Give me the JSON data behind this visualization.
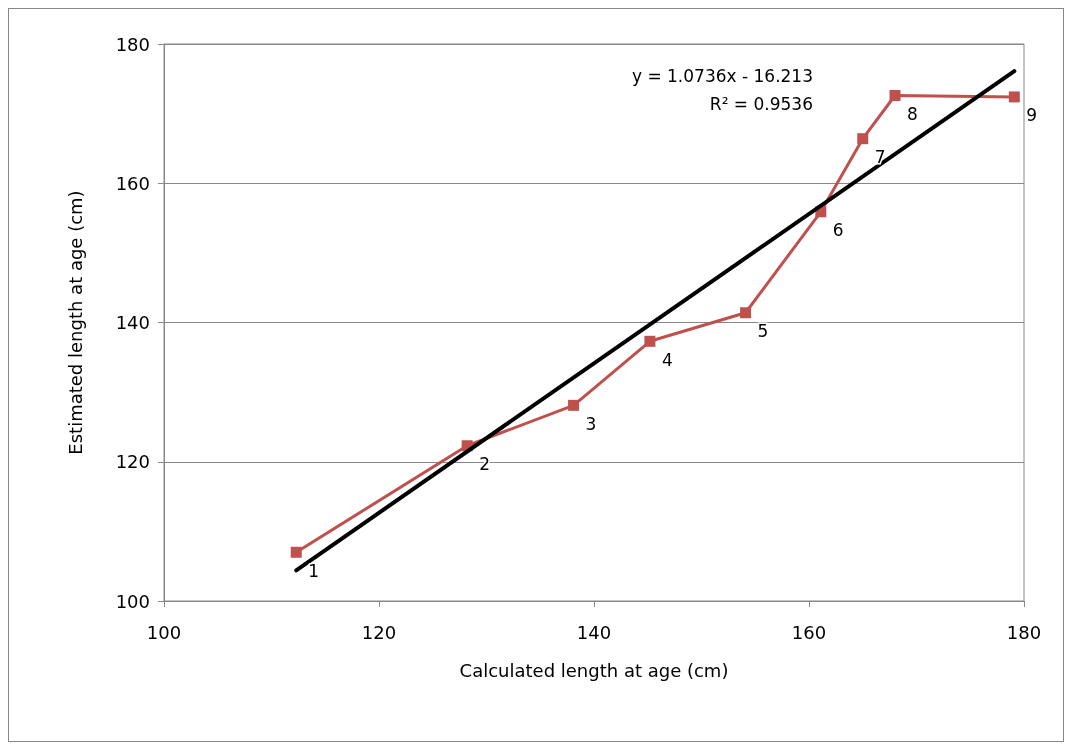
{
  "chart_data": {
    "type": "line",
    "xlabel": "Calculated length at age (cm)",
    "ylabel": "Estimated length at age (cm)",
    "xlim": [
      100,
      180
    ],
    "xticks": [
      100,
      120,
      140,
      160,
      180
    ],
    "ylim": [
      100,
      180
    ],
    "yticks": [
      100,
      120,
      140,
      160,
      180
    ],
    "grid": "y",
    "annotations": [
      "y = 1.0736x - 16.213",
      "R² = 0.9536",
      {
        "text": "1",
        "x": 112.3,
        "y": 107.0
      },
      {
        "text": "2",
        "x": 128.2,
        "y": 122.3
      },
      {
        "text": "3",
        "x": 138.1,
        "y": 128.1
      },
      {
        "text": "4",
        "x": 145.2,
        "y": 137.3
      },
      {
        "text": "5",
        "x": 154.1,
        "y": 141.4
      },
      {
        "text": "6",
        "x": 161.1,
        "y": 155.9
      },
      {
        "text": "7",
        "x": 165.0,
        "y": 166.4
      },
      {
        "text": "8",
        "x": 168.0,
        "y": 172.6
      },
      {
        "text": "9",
        "x": 179.1,
        "y": 172.4
      }
    ],
    "series": [
      {
        "color": "#c0504d",
        "marker": "square",
        "x": [
          112.3,
          128.2,
          138.1,
          145.2,
          154.1,
          161.1,
          165.0,
          168.0,
          179.1
        ],
        "values": [
          107.0,
          122.3,
          128.1,
          137.3,
          141.4,
          155.9,
          166.4,
          172.6,
          172.4
        ]
      },
      {
        "color": "#000000",
        "marker": "none",
        "x": [
          112.3,
          179.1
        ],
        "values": [
          104.4,
          176.1
        ]
      }
    ]
  }
}
